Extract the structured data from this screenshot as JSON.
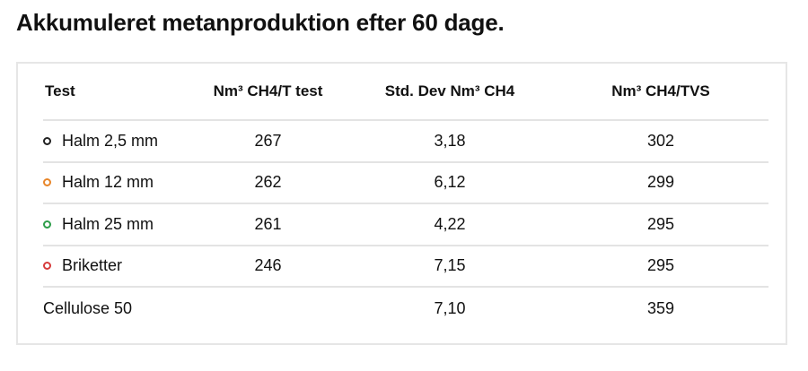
{
  "title": "Akkumuleret metanproduktion efter 60 dage.",
  "table": {
    "headers": [
      "Test",
      "Nm³ CH4/T test",
      "Std. Dev Nm³ CH4",
      "Nm³ CH4/TVS"
    ],
    "rows": [
      {
        "test": "Halm 2,5 mm",
        "nm3_ch4_t_test": "267",
        "std_dev": "3,18",
        "nm3_ch4_tvs": "302",
        "marker_color": "#222222"
      },
      {
        "test": "Halm 12 mm",
        "nm3_ch4_t_test": "262",
        "std_dev": "6,12",
        "nm3_ch4_tvs": "299",
        "marker_color": "#e8862a"
      },
      {
        "test": "Halm 25 mm",
        "nm3_ch4_t_test": "261",
        "std_dev": "4,22",
        "nm3_ch4_tvs": "295",
        "marker_color": "#2e9e4a"
      },
      {
        "test": "Briketter",
        "nm3_ch4_t_test": "246",
        "std_dev": "7,15",
        "nm3_ch4_tvs": "295",
        "marker_color": "#d63b3b"
      },
      {
        "test": "Cellulose 50",
        "nm3_ch4_t_test": "",
        "std_dev": "7,10",
        "nm3_ch4_tvs": "359",
        "marker_color": null
      }
    ]
  }
}
